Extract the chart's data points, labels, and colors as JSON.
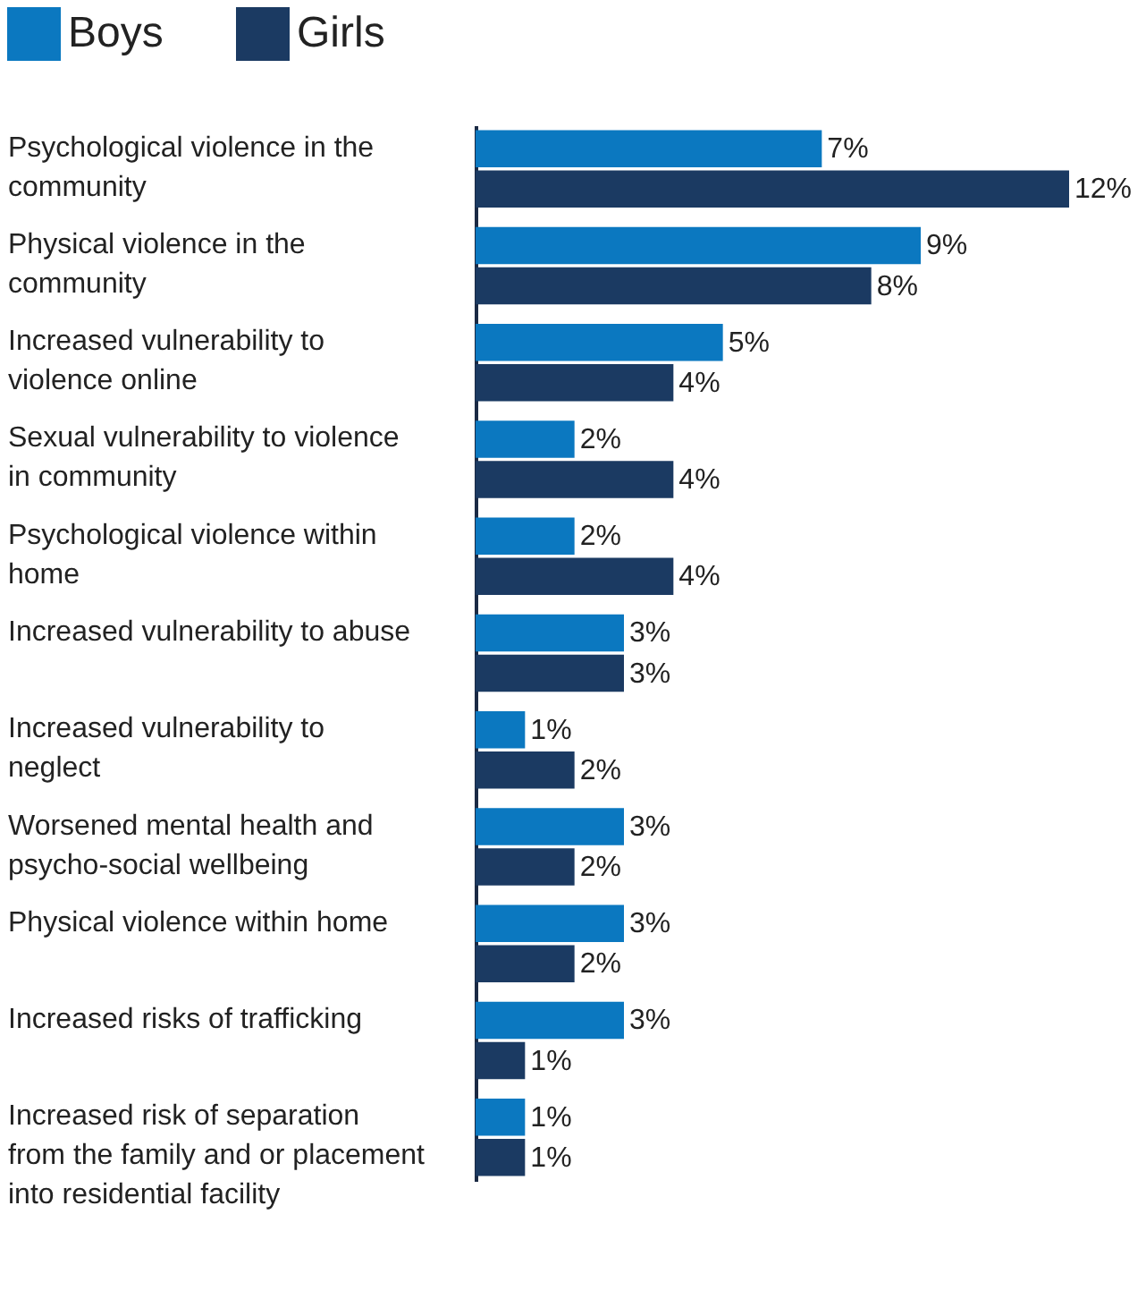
{
  "chart_data": {
    "type": "bar",
    "orientation": "horizontal",
    "legend": "top left",
    "categories": [
      "Psychological violence in the community",
      "Physical violence in the community",
      "Increased vulnerability to violence online",
      "Sexual vulnerability to violence in community",
      "Psychological violence within home",
      "Increased vulnerability to abuse",
      "Increased vulnerability to neglect",
      "Worsened mental health and psycho-social wellbeing",
      "Physical violence within home",
      "Increased risks of trafficking",
      "Increased risk of separation from the family and or placement into residential facility"
    ],
    "series": [
      {
        "name": "Boys",
        "color": "#0b78c0",
        "values": [
          7,
          9,
          5,
          2,
          2,
          3,
          1,
          3,
          3,
          3,
          1
        ],
        "value_labels": [
          "7%",
          "9%",
          "5%",
          "2%",
          "2%",
          "3%",
          "1%",
          "3%",
          "3%",
          "3%",
          "1%"
        ]
      },
      {
        "name": "Girls",
        "color": "#1b3a62",
        "values": [
          12,
          8,
          4,
          4,
          4,
          3,
          2,
          2,
          2,
          1,
          1
        ],
        "value_labels": [
          "12%",
          "8%",
          "4%",
          "4%",
          "4%",
          "3%",
          "2%",
          "2%",
          "2%",
          "1%",
          "1%"
        ]
      }
    ]
  }
}
